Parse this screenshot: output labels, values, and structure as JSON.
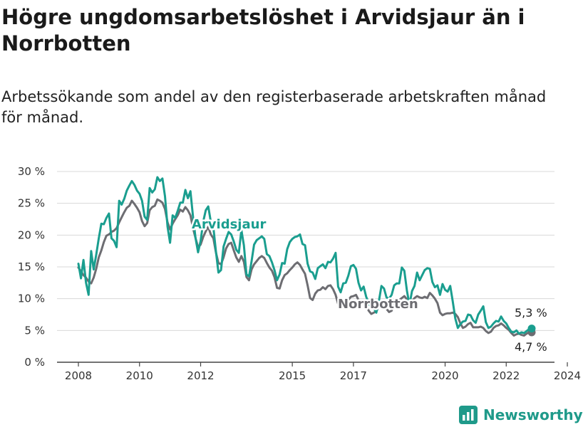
{
  "header": {
    "title": "Högre ungdomsarbetslöshet i Arvidsjaur än i Norrbotten",
    "subtitle": "Arbetssökande som andel av den registerbaserade arbetskraften månad för månad."
  },
  "brand": {
    "name": "Newsworthy",
    "icon": "chart-logo-icon",
    "color": "#1f9a8a"
  },
  "chart_data": {
    "type": "line",
    "x_ticks": [
      "2008",
      "2010",
      "2012",
      "2015",
      "2017",
      "2020",
      "2022",
      "2024"
    ],
    "y_ticks": [
      "0 %",
      "5 %",
      "10 %",
      "15 %",
      "20 %",
      "25 %",
      "30 %"
    ],
    "ylim": [
      0,
      30
    ],
    "grid": true,
    "series": [
      {
        "name": "Arvidsjaur",
        "color": "#1a9e8f",
        "end_label": "5,3 %",
        "values": [
          15.5,
          13.2,
          16.1,
          12.5,
          10.6,
          17.5,
          14.6,
          16.9,
          19.5,
          21.8,
          21.7,
          22.7,
          23.4,
          19.5,
          19.1,
          18.1,
          25.4,
          24.8,
          25.7,
          27.0,
          27.8,
          28.5,
          27.9,
          27.0,
          26.5,
          25.4,
          22.9,
          22.4,
          27.4,
          26.7,
          27.2,
          29.1,
          28.5,
          28.9,
          26.1,
          21.3,
          18.8,
          23.1,
          22.7,
          23.8,
          25.1,
          25.1,
          27.1,
          25.8,
          26.9,
          22.9,
          19.5,
          17.3,
          19.1,
          22.1,
          23.9,
          24.5,
          22.1,
          21.2,
          17.5,
          14.1,
          14.5,
          18.2,
          19.4,
          20.5,
          20.1,
          19.0,
          17.7,
          17.2,
          20.8,
          18.4,
          13.8,
          13.5,
          15.9,
          18.5,
          19.2,
          19.5,
          19.8,
          19.4,
          17.0,
          16.7,
          15.7,
          14.5,
          12.9,
          13.8,
          15.6,
          15.5,
          17.8,
          18.9,
          19.4,
          19.7,
          19.8,
          20.1,
          18.6,
          18.4,
          15.5,
          14.3,
          14.1,
          13.1,
          14.8,
          15.1,
          15.4,
          14.8,
          15.8,
          15.7,
          16.3,
          17.2,
          11.9,
          11.0,
          12.4,
          12.5,
          13.6,
          15.1,
          15.3,
          14.7,
          12.5,
          11.3,
          11.9,
          10.3,
          9.3,
          8.6,
          8.5,
          7.8,
          9.6,
          12.0,
          11.6,
          10.2,
          10.0,
          10.6,
          12.1,
          12.4,
          12.4,
          14.9,
          14.4,
          11.3,
          9.0,
          11.2,
          12.0,
          14.1,
          12.9,
          13.7,
          14.5,
          14.8,
          14.7,
          12.6,
          11.8,
          12.1,
          10.6,
          12.3,
          11.4,
          11.1,
          12.0,
          9.6,
          6.9,
          5.4,
          6.0,
          6.4,
          6.5,
          7.5,
          7.4,
          6.6,
          6.2,
          7.5,
          8.1,
          8.8,
          6.3,
          5.4,
          5.6,
          6.1,
          6.5,
          6.4,
          7.2,
          6.5,
          6.1,
          5.4,
          4.8,
          4.7,
          5.0,
          4.5,
          4.7,
          4.6,
          4.9,
          5.2,
          5.3
        ]
      },
      {
        "name": "Norrbotten",
        "color": "#6d6d72",
        "end_label": "4,7 %",
        "values": [
          14.9,
          14.3,
          13.7,
          13.3,
          12.7,
          12.4,
          13.3,
          14.7,
          16.5,
          17.6,
          18.9,
          19.9,
          20.1,
          20.5,
          20.7,
          21.1,
          22.0,
          22.8,
          23.6,
          24.3,
          24.6,
          25.4,
          24.9,
          24.3,
          23.6,
          22.2,
          21.4,
          21.9,
          23.9,
          24.4,
          24.6,
          25.6,
          25.4,
          25.1,
          24.1,
          22.0,
          20.9,
          21.8,
          22.5,
          23.1,
          24.0,
          23.7,
          24.4,
          23.9,
          23.1,
          21.1,
          19.5,
          18.1,
          18.5,
          19.7,
          20.6,
          21.3,
          20.1,
          19.5,
          17.3,
          15.6,
          15.4,
          16.5,
          17.9,
          18.6,
          18.8,
          17.6,
          16.5,
          15.8,
          16.7,
          15.8,
          13.4,
          12.9,
          14.6,
          15.4,
          15.9,
          16.4,
          16.7,
          16.4,
          15.6,
          14.9,
          14.4,
          13.4,
          11.7,
          11.6,
          12.9,
          13.7,
          14.0,
          14.5,
          14.9,
          15.4,
          15.7,
          15.3,
          14.6,
          13.9,
          12.1,
          10.1,
          9.8,
          10.8,
          11.3,
          11.4,
          11.8,
          11.5,
          12.0,
          12.1,
          11.5,
          10.6,
          9.2,
          8.4,
          8.6,
          9.1,
          9.8,
          10.3,
          10.4,
          10.6,
          9.8,
          9.1,
          9.6,
          9.0,
          8.1,
          7.6,
          7.8,
          8.0,
          8.8,
          9.5,
          9.3,
          8.4,
          7.9,
          8.1,
          9.3,
          9.7,
          9.8,
          10.1,
          10.4,
          9.9,
          9.4,
          9.6,
          10.1,
          10.4,
          10.2,
          10.1,
          10.3,
          10.1,
          10.9,
          10.5,
          10.0,
          9.3,
          7.8,
          7.4,
          7.6,
          7.7,
          7.7,
          7.8,
          7.6,
          7.1,
          6.1,
          5.4,
          5.6,
          6.0,
          6.2,
          5.5,
          5.5,
          5.5,
          5.6,
          5.4,
          4.9,
          4.6,
          4.8,
          5.4,
          5.7,
          5.8,
          6.1,
          5.8,
          5.4,
          5.1,
          4.6,
          4.2,
          4.4,
          4.5,
          4.3,
          4.2,
          4.5,
          4.7,
          4.7
        ]
      }
    ]
  }
}
